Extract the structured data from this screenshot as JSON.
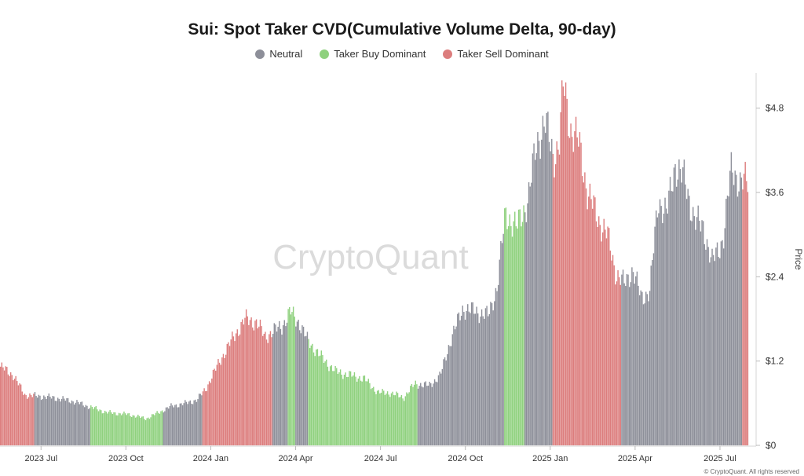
{
  "chart_data": {
    "type": "bar",
    "title": "Sui: Spot Taker CVD(Cumulative Volume Delta, 90-day)",
    "ylabel": "Price",
    "xlabel": "",
    "ylim": [
      0,
      5.3
    ],
    "yticks": [
      0,
      1.2,
      2.4,
      3.6,
      4.8
    ],
    "ytick_labels": [
      "$0",
      "$1.2",
      "$2.4",
      "$3.6",
      "$4.8"
    ],
    "xticks": [
      {
        "label": "2023 Jul",
        "t": 0.5
      },
      {
        "label": "2023 Oct",
        "t": 3.5
      },
      {
        "label": "2024 Jan",
        "t": 6.5
      },
      {
        "label": "2024 Apr",
        "t": 9.5
      },
      {
        "label": "2024 Jul",
        "t": 12.5
      },
      {
        "label": "2024 Oct",
        "t": 15.5
      },
      {
        "label": "2025 Jan",
        "t": 18.5
      },
      {
        "label": "2025 Apr",
        "t": 21.5
      },
      {
        "label": "2025 Jul",
        "t": 24.5
      }
    ],
    "x_domain": [
      -0.95,
      25.5
    ],
    "legend": [
      {
        "name": "Neutral",
        "color": "#8d8f99"
      },
      {
        "name": "Taker Buy Dominant",
        "color": "#8fd17e"
      },
      {
        "name": "Taker Sell Dominant",
        "color": "#dc7d7d"
      }
    ],
    "price_keypoints": [
      [
        -0.95,
        1.12
      ],
      [
        -0.5,
        1.0
      ],
      [
        -0.1,
        0.72
      ],
      [
        0.4,
        0.7
      ],
      [
        0.9,
        0.68
      ],
      [
        1.6,
        0.63
      ],
      [
        2.2,
        0.55
      ],
      [
        2.8,
        0.47
      ],
      [
        3.6,
        0.44
      ],
      [
        4.2,
        0.38
      ],
      [
        4.7,
        0.48
      ],
      [
        5.1,
        0.56
      ],
      [
        5.6,
        0.6
      ],
      [
        6.0,
        0.65
      ],
      [
        6.3,
        0.8
      ],
      [
        6.8,
        1.2
      ],
      [
        7.3,
        1.55
      ],
      [
        7.7,
        1.8
      ],
      [
        8.1,
        1.75
      ],
      [
        8.4,
        1.55
      ],
      [
        9.0,
        1.7
      ],
      [
        9.3,
        1.9
      ],
      [
        9.6,
        1.75
      ],
      [
        9.9,
        1.5
      ],
      [
        10.4,
        1.25
      ],
      [
        10.9,
        1.05
      ],
      [
        11.4,
        1.0
      ],
      [
        11.9,
        0.95
      ],
      [
        12.4,
        0.75
      ],
      [
        12.8,
        0.75
      ],
      [
        13.3,
        0.68
      ],
      [
        13.7,
        0.88
      ],
      [
        14.2,
        0.85
      ],
      [
        14.6,
        1.0
      ],
      [
        15.0,
        1.55
      ],
      [
        15.4,
        1.95
      ],
      [
        15.9,
        1.9
      ],
      [
        16.3,
        1.85
      ],
      [
        16.6,
        2.25
      ],
      [
        16.9,
        3.3
      ],
      [
        17.3,
        3.1
      ],
      [
        17.7,
        3.5
      ],
      [
        18.0,
        4.3
      ],
      [
        18.3,
        4.6
      ],
      [
        18.6,
        4.1
      ],
      [
        18.8,
        4.3
      ],
      [
        18.95,
        5.15
      ],
      [
        19.2,
        4.5
      ],
      [
        19.5,
        4.3
      ],
      [
        19.8,
        3.6
      ],
      [
        20.2,
        3.2
      ],
      [
        20.5,
        3.0
      ],
      [
        20.8,
        2.45
      ],
      [
        21.1,
        2.3
      ],
      [
        21.4,
        2.5
      ],
      [
        21.7,
        2.1
      ],
      [
        22.0,
        2.2
      ],
      [
        22.3,
        3.5
      ],
      [
        22.6,
        3.3
      ],
      [
        22.9,
        4.0
      ],
      [
        23.2,
        3.8
      ],
      [
        23.6,
        3.2
      ],
      [
        23.9,
        3.1
      ],
      [
        24.2,
        2.6
      ],
      [
        24.6,
        2.95
      ],
      [
        24.9,
        4.0
      ],
      [
        25.2,
        3.7
      ],
      [
        25.5,
        3.8
      ]
    ],
    "segments": [
      {
        "from": -0.95,
        "to": 0.25,
        "class": "sell"
      },
      {
        "from": 0.25,
        "to": 2.2,
        "class": "neutral"
      },
      {
        "from": 2.2,
        "to": 4.8,
        "class": "buy"
      },
      {
        "from": 4.8,
        "to": 6.2,
        "class": "neutral"
      },
      {
        "from": 6.2,
        "to": 8.65,
        "class": "sell"
      },
      {
        "from": 8.65,
        "to": 9.2,
        "class": "neutral"
      },
      {
        "from": 9.2,
        "to": 9.45,
        "class": "buy"
      },
      {
        "from": 9.45,
        "to": 9.9,
        "class": "neutral"
      },
      {
        "from": 9.9,
        "to": 13.8,
        "class": "buy"
      },
      {
        "from": 13.8,
        "to": 16.85,
        "class": "neutral"
      },
      {
        "from": 16.85,
        "to": 17.55,
        "class": "buy"
      },
      {
        "from": 17.55,
        "to": 18.55,
        "class": "neutral"
      },
      {
        "from": 18.55,
        "to": 21.0,
        "class": "sell"
      },
      {
        "from": 21.0,
        "to": 25.25,
        "class": "neutral"
      },
      {
        "from": 25.25,
        "to": 25.5,
        "class": "sell"
      }
    ],
    "watermark": "CryptoQuant"
  },
  "footer": {
    "copyright": "© CryptoQuant. All rights reserved"
  }
}
